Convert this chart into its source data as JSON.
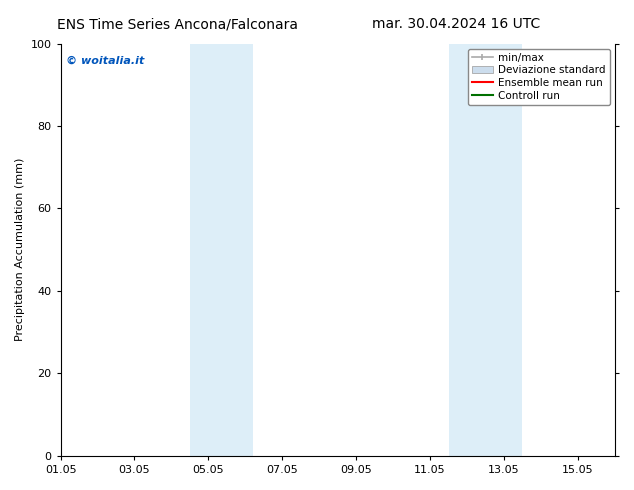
{
  "title_left": "ENS Time Series Ancona/Falconara",
  "title_right": "mar. 30.04.2024 16 UTC",
  "ylabel": "Precipitation Accumulation (mm)",
  "ylim": [
    0,
    100
  ],
  "yticks": [
    0,
    20,
    40,
    60,
    80,
    100
  ],
  "xtick_labels": [
    "01.05",
    "03.05",
    "05.05",
    "07.05",
    "09.05",
    "11.05",
    "13.05",
    "15.05"
  ],
  "xtick_positions": [
    0,
    2,
    4,
    6,
    8,
    10,
    12,
    14
  ],
  "xlim": [
    0,
    15
  ],
  "background_color": "#ffffff",
  "shaded_regions": [
    {
      "x_start": 3.5,
      "x_end": 5.2
    },
    {
      "x_start": 10.5,
      "x_end": 12.5
    }
  ],
  "shaded_color": "#ddeef8",
  "watermark_text": "© woitalia.it",
  "watermark_color": "#0055bb",
  "legend_entries": [
    {
      "label": "min/max",
      "color": "#aaaaaa",
      "style": "errorbar"
    },
    {
      "label": "Deviazione standard",
      "color": "#ccdded",
      "style": "rect"
    },
    {
      "label": "Ensemble mean run",
      "color": "#ff0000",
      "style": "line"
    },
    {
      "label": "Controll run",
      "color": "#007000",
      "style": "line"
    }
  ],
  "title_fontsize": 10,
  "tick_fontsize": 8,
  "ylabel_fontsize": 8,
  "legend_fontsize": 7.5,
  "watermark_fontsize": 8
}
